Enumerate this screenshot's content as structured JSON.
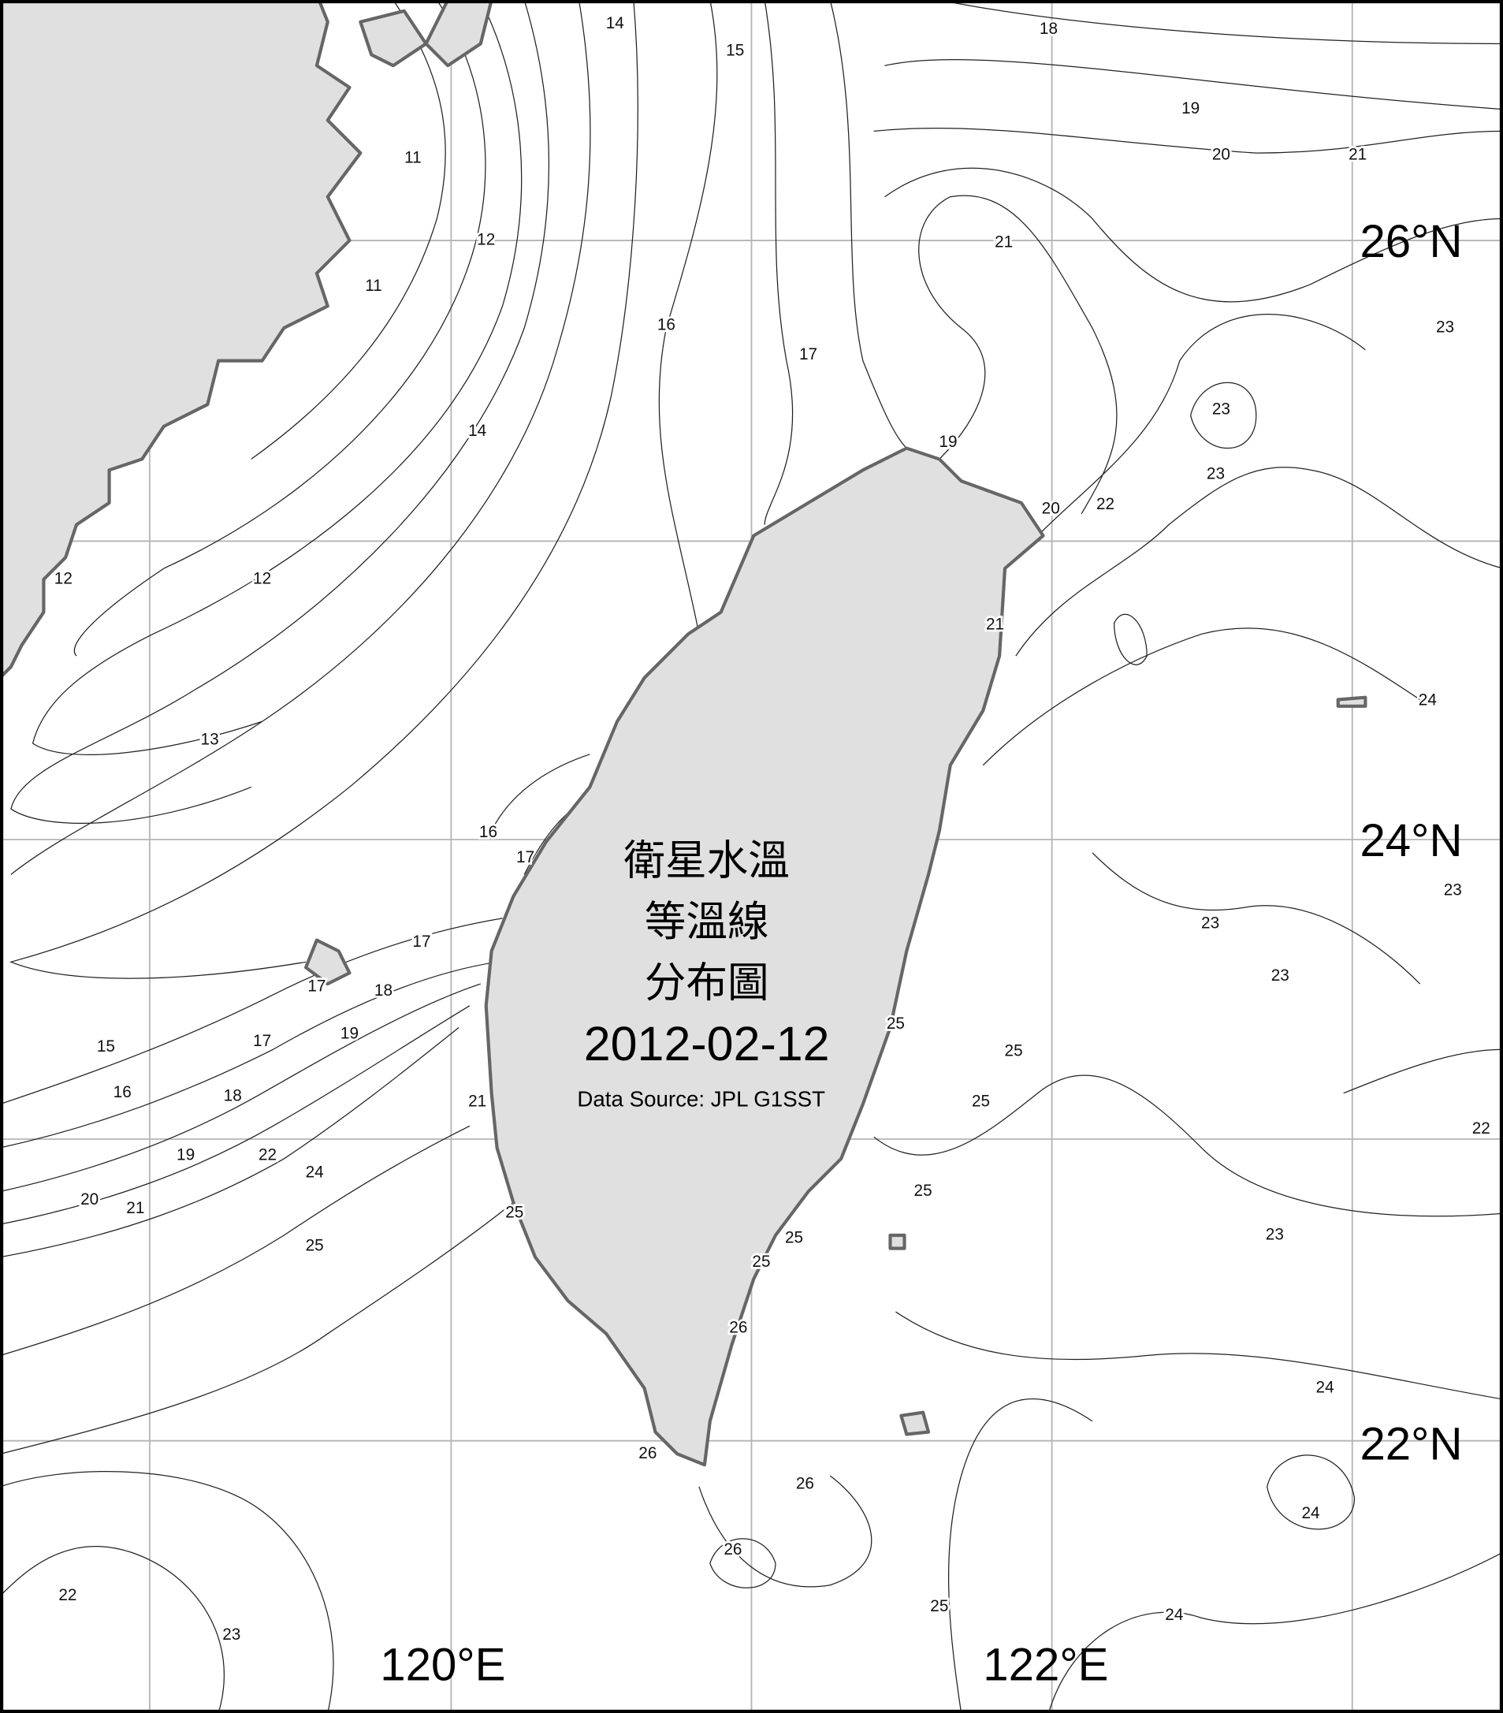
{
  "title_lines": [
    "衛星水溫",
    "等溫線",
    "分布圖"
  ],
  "date": "2012-02-12",
  "source": "Data Source: JPL G1SST",
  "axis_labels": {
    "lat": [
      "26°N",
      "24°N",
      "22°N"
    ],
    "lon": [
      "120°E",
      "122°E"
    ]
  },
  "contour_labels": [
    11,
    11,
    12,
    12,
    12,
    13,
    14,
    14,
    15,
    15,
    16,
    16,
    16,
    17,
    17,
    17,
    17,
    17,
    18,
    18,
    18,
    19,
    19,
    19,
    19,
    20,
    20,
    20,
    21,
    21,
    21,
    21,
    21,
    22,
    22,
    22,
    22,
    23,
    23,
    23,
    23,
    23,
    23,
    23,
    23,
    24,
    24,
    24,
    24,
    24,
    25,
    25,
    25,
    25,
    25,
    25,
    25,
    25,
    25,
    26,
    26,
    26,
    26
  ],
  "colors": {
    "land": "#e0e0e0",
    "coastline": "#666666",
    "grid": "#b4b4b4",
    "contour": "#222222"
  }
}
